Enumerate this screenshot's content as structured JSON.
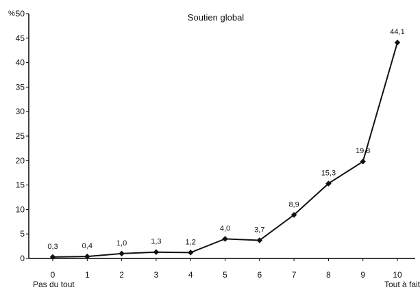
{
  "chart_data": {
    "type": "line",
    "title": "Soutien global",
    "ylabel": "%",
    "xlabel": "",
    "x": [
      0,
      1,
      2,
      3,
      4,
      5,
      6,
      7,
      8,
      9,
      10
    ],
    "categories": [
      "0",
      "1",
      "2",
      "3",
      "4",
      "5",
      "6",
      "7",
      "8",
      "9",
      "10"
    ],
    "series": [
      {
        "values": [
          0.3,
          0.4,
          1.0,
          1.3,
          1.2,
          4.0,
          3.7,
          8.9,
          15.3,
          19.8,
          44.1
        ],
        "labels": [
          "0,3",
          "0,4",
          "1,0",
          "1,3",
          "1,2",
          "4,0",
          "3,7",
          "8,9",
          "15,3",
          "19,8",
          "44,1"
        ]
      }
    ],
    "ylim": [
      0,
      50
    ],
    "yticks": [
      "0",
      "5",
      "10",
      "15",
      "20",
      "25",
      "30",
      "35",
      "40",
      "45",
      "50"
    ],
    "x_end_labels": {
      "left": "Pas du tout",
      "right": "Tout à fait"
    },
    "grid": false,
    "line_color": "#111111"
  }
}
